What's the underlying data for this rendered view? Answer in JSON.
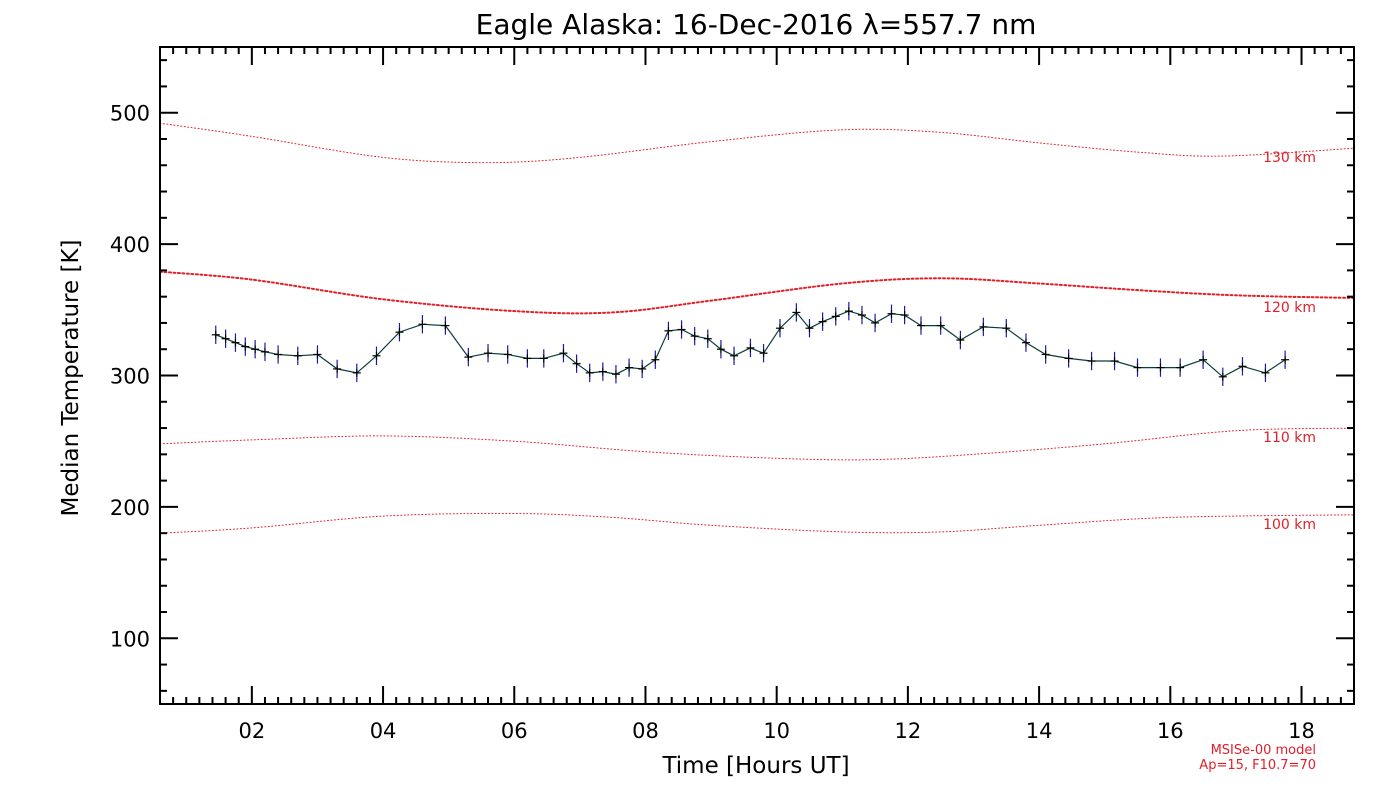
{
  "chart_data": {
    "type": "line",
    "title": "Eagle Alaska: 16-Dec-2016 λ=557.7 nm",
    "xlabel": "Time [Hours UT]",
    "ylabel": "Median Temperature [K]",
    "xlim": [
      0.6,
      18.8
    ],
    "ylim": [
      50,
      550
    ],
    "x_ticks": [
      2,
      4,
      6,
      8,
      10,
      12,
      14,
      16,
      18
    ],
    "x_tick_labels": [
      "02",
      "04",
      "06",
      "08",
      "10",
      "12",
      "14",
      "16",
      "18"
    ],
    "y_ticks": [
      100,
      200,
      300,
      400,
      500
    ],
    "y_tick_labels": [
      "100",
      "200",
      "300",
      "400",
      "500"
    ],
    "grid": false,
    "colors": {
      "data_line": "#0b3d3d",
      "data_marker": "#000000",
      "error_bar": "#1a1aa6",
      "model": "#e0202a"
    },
    "series": [
      {
        "x": [
          1.45,
          1.6,
          1.75,
          1.9,
          2.05,
          2.2,
          2.4,
          2.7,
          3.0,
          3.3,
          3.6,
          3.9,
          4.25,
          4.6,
          4.95,
          5.3,
          5.6,
          5.9,
          6.2,
          6.45,
          6.75,
          6.95,
          7.15,
          7.35,
          7.55,
          7.75,
          7.95,
          8.15,
          8.35,
          8.55,
          8.75,
          8.95,
          9.15,
          9.35,
          9.6,
          9.8,
          10.05,
          10.3,
          10.5,
          10.7,
          10.9,
          11.1,
          11.3,
          11.5,
          11.75,
          11.95,
          12.2,
          12.5,
          12.8,
          13.15,
          13.5,
          13.8,
          14.1,
          14.45,
          14.8,
          15.15,
          15.5,
          15.85,
          16.15,
          16.5,
          16.8,
          17.1,
          17.45,
          17.75
        ],
        "values": [
          331,
          328,
          325,
          322,
          320,
          318,
          316,
          315,
          316,
          305,
          302,
          315,
          333,
          339,
          338,
          314,
          317,
          316,
          313,
          313,
          317,
          309,
          302,
          303,
          301,
          306,
          305,
          312,
          334,
          335,
          330,
          328,
          320,
          315,
          321,
          317,
          336,
          348,
          336,
          341,
          345,
          349,
          346,
          340,
          347,
          346,
          338,
          338,
          327,
          337,
          336,
          325,
          316,
          313,
          311,
          311,
          306,
          306,
          306,
          312,
          299,
          307,
          302,
          312
        ],
        "error": 7
      }
    ],
    "model_curves": [
      {
        "name": "130 km",
        "style": "dotted",
        "x": [
          0.6,
          2,
          4,
          5.6,
          7,
          9,
          11,
          12.5,
          14,
          15.5,
          16.8,
          18.8
        ],
        "values": [
          492,
          482,
          466,
          462,
          466,
          478,
          487,
          485,
          477,
          470,
          467,
          473
        ]
      },
      {
        "name": "120 km",
        "style": "dotted",
        "x": [
          0.6,
          2,
          4,
          6,
          7.5,
          9,
          11,
          12.5,
          14,
          15.5,
          17,
          18.8
        ],
        "values": [
          379,
          373,
          358,
          349,
          348,
          357,
          370,
          374,
          370,
          365,
          361,
          359
        ]
      },
      {
        "name": "110 km",
        "style": "dotted",
        "x": [
          0.6,
          2,
          4,
          6,
          8,
          10,
          11.5,
          13,
          15,
          17,
          18.8
        ],
        "values": [
          248,
          251,
          254,
          250,
          242,
          237,
          236,
          240,
          248,
          258,
          260
        ]
      },
      {
        "name": "100 km",
        "style": "dotted",
        "x": [
          0.6,
          2,
          4,
          6,
          7.5,
          9,
          11,
          12.5,
          14,
          16,
          18.8
        ],
        "values": [
          180,
          184,
          193,
          195,
          192,
          186,
          181,
          181,
          186,
          192,
          194
        ]
      }
    ],
    "footnote": [
      "MSISe-00 model",
      "Ap=15, F10.7=70"
    ]
  }
}
